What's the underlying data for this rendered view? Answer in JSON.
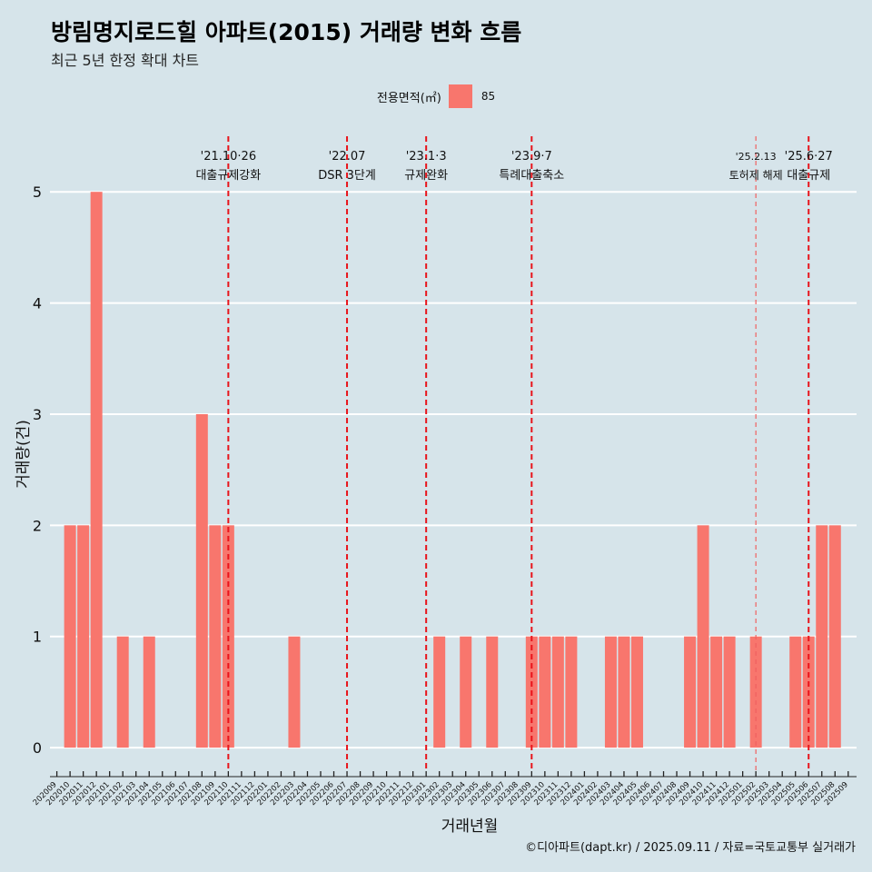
{
  "header": {
    "title": "방림명지로드힐 아파트(2015) 거래량 변화 흐름",
    "subtitle": "최근 5년 한정 확대 차트"
  },
  "legend": {
    "title": "전용면적(㎡)",
    "items": [
      {
        "label": "85",
        "color": "#f8766d"
      }
    ]
  },
  "caption": "©디아파트(dapt.kr) / 2025.09.11 / 자료=국토교통부 실거래가",
  "chart_data": {
    "type": "bar",
    "xlabel": "거래년월",
    "ylabel": "거래량(건)",
    "ylim": [
      -0.22,
      5.5
    ],
    "yticks": [
      0,
      1,
      2,
      3,
      4,
      5
    ],
    "grid": true,
    "legend_position": "top",
    "bar_color": "#f8766d",
    "categories": [
      "202009",
      "202010",
      "202011",
      "202012",
      "202101",
      "202102",
      "202103",
      "202104",
      "202105",
      "202106",
      "202107",
      "202108",
      "202109",
      "202110",
      "202111",
      "202112",
      "202201",
      "202202",
      "202203",
      "202204",
      "202205",
      "202206",
      "202207",
      "202208",
      "202209",
      "202210",
      "202211",
      "202212",
      "202301",
      "202302",
      "202303",
      "202304",
      "202305",
      "202306",
      "202307",
      "202308",
      "202309",
      "202310",
      "202311",
      "202312",
      "202401",
      "202402",
      "202403",
      "202404",
      "202405",
      "202406",
      "202407",
      "202408",
      "202409",
      "202410",
      "202411",
      "202412",
      "202501",
      "202502",
      "202503",
      "202504",
      "202505",
      "202506",
      "202507",
      "202508",
      "202509"
    ],
    "series": [
      {
        "name": "85",
        "values": [
          0,
          2,
          2,
          5,
          0,
          1,
          0,
          1,
          0,
          0,
          0,
          3,
          2,
          2,
          0,
          0,
          0,
          0,
          1,
          0,
          0,
          0,
          0,
          0,
          0,
          0,
          0,
          0,
          0,
          1,
          0,
          1,
          0,
          1,
          0,
          0,
          1,
          1,
          1,
          1,
          0,
          0,
          1,
          1,
          1,
          0,
          0,
          0,
          1,
          2,
          1,
          1,
          0,
          1,
          0,
          0,
          1,
          1,
          2,
          2,
          0
        ]
      }
    ],
    "annotations": [
      {
        "x": "202110",
        "date": "'21.10·26",
        "label": "대출규제강화",
        "style": "bold"
      },
      {
        "x": "202207",
        "date": "'22.07",
        "label": "DSR 3단계",
        "style": "bold"
      },
      {
        "x": "202301",
        "date": "'23.1·3",
        "label": "규제완화",
        "style": "bold"
      },
      {
        "x": "202309",
        "date": "'23.9·7",
        "label": "특례대출축소",
        "style": "bold"
      },
      {
        "x": "202502",
        "date": "'25.2.13",
        "label": "토허제 해제",
        "style": "thin"
      },
      {
        "x": "202506",
        "date": "'25.6·27",
        "label": "대출규제",
        "style": "bold"
      }
    ]
  }
}
